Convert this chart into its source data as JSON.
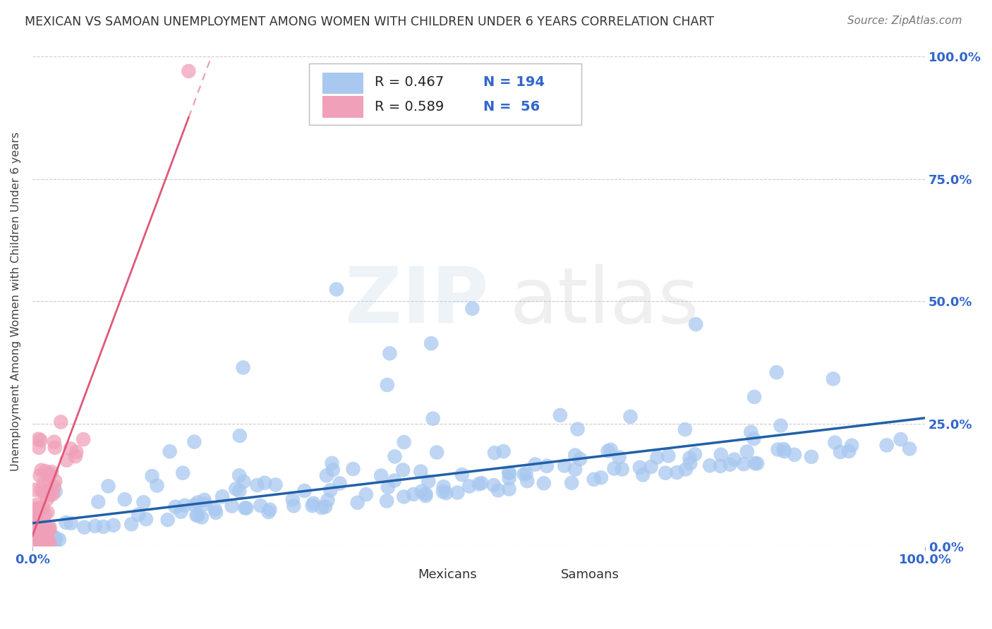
{
  "title": "MEXICAN VS SAMOAN UNEMPLOYMENT AMONG WOMEN WITH CHILDREN UNDER 6 YEARS CORRELATION CHART",
  "source": "Source: ZipAtlas.com",
  "ylabel": "Unemployment Among Women with Children Under 6 years",
  "yticks": [
    "0.0%",
    "25.0%",
    "50.0%",
    "75.0%",
    "100.0%"
  ],
  "ytick_values": [
    0.0,
    0.25,
    0.5,
    0.75,
    1.0
  ],
  "legend_r1": "R = 0.467",
  "legend_n1": "N = 194",
  "legend_r2": "R = 0.589",
  "legend_n2": "N =  56",
  "blue_color": "#A8C8F0",
  "pink_color": "#F0A0B8",
  "blue_line_color": "#2060A8",
  "pink_line_color": "#E05878",
  "title_color": "#333333",
  "source_color": "#777777",
  "axis_label_color": "#3366CC",
  "grid_color": "#CCCCCC",
  "mexicans_N": 194,
  "samoans_N": 56,
  "seed": 7
}
